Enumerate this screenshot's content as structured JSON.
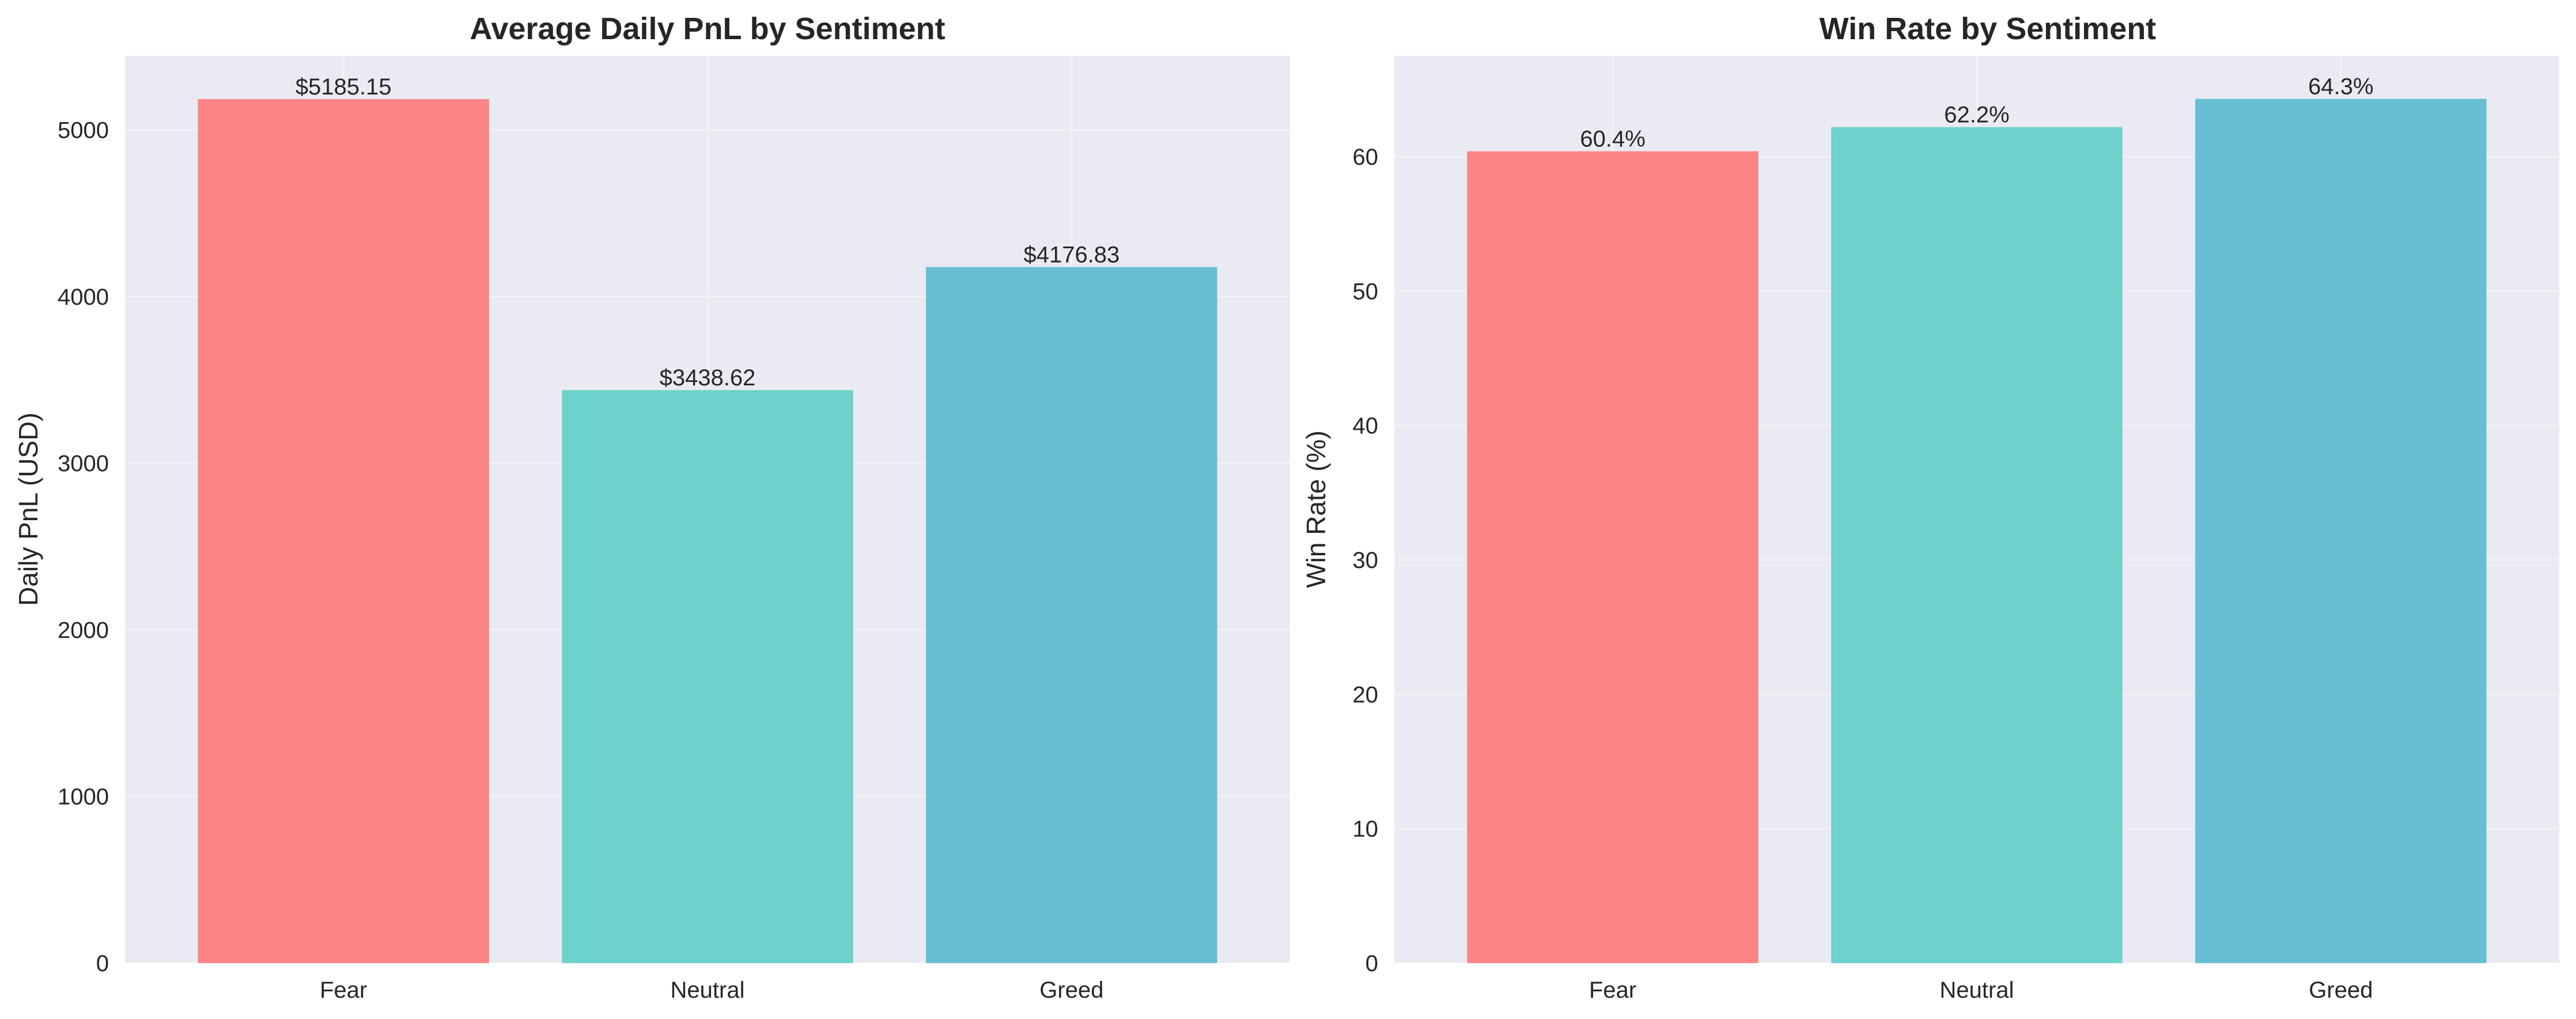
{
  "chart_data": [
    {
      "type": "bar",
      "title": "Average Daily PnL by Sentiment",
      "xlabel": "",
      "ylabel": "Daily PnL (USD)",
      "categories": [
        "Fear",
        "Neutral",
        "Greed"
      ],
      "values": [
        5185.15,
        3438.62,
        4176.83
      ],
      "value_labels": [
        "$5185.15",
        "$3438.62",
        "$4176.83"
      ],
      "ylim": [
        0,
        5444.4
      ],
      "yticks": [
        0,
        1000,
        2000,
        3000,
        4000,
        5000
      ],
      "ytick_labels": [
        "0",
        "1000",
        "2000",
        "3000",
        "4000",
        "5000"
      ],
      "colors": [
        "#fd8585",
        "#6ed1cc",
        "#66bfd5"
      ],
      "grid": true
    },
    {
      "type": "bar",
      "title": "Win Rate by Sentiment",
      "xlabel": "",
      "ylabel": "Win Rate (%)",
      "categories": [
        "Fear",
        "Neutral",
        "Greed"
      ],
      "values": [
        60.4,
        62.2,
        64.3
      ],
      "value_labels": [
        "60.4%",
        "62.2%",
        "64.3%"
      ],
      "ylim": [
        0,
        67.5
      ],
      "yticks": [
        0,
        10,
        20,
        30,
        40,
        50,
        60
      ],
      "ytick_labels": [
        "0",
        "10",
        "20",
        "30",
        "40",
        "50",
        "60"
      ],
      "colors": [
        "#fd8585",
        "#6ed1cc",
        "#66bfd5"
      ],
      "grid": true
    }
  ]
}
